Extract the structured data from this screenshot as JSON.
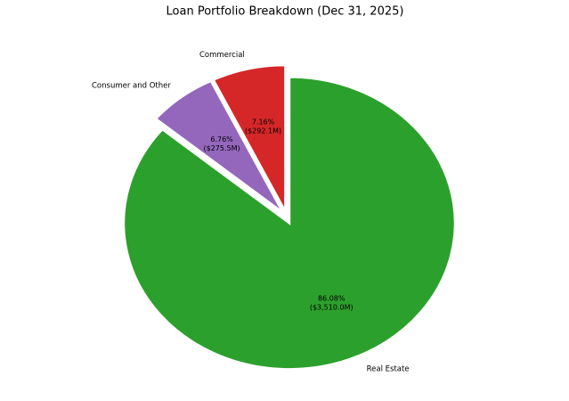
{
  "chart_data": {
    "type": "pie",
    "title": "Loan Portfolio Breakdown (Dec 31, 2025)",
    "categories": [
      "Real Estate",
      "Consumer and Other",
      "Commercial"
    ],
    "values": [
      86.08,
      6.76,
      7.16
    ],
    "value_labels": [
      "86.08%\n($3,510.0M)",
      "6.76%\n($275.5M)",
      "7.16%\n($292.1M)"
    ],
    "colors": [
      "#2ca02c",
      "#9467bd",
      "#d62728"
    ]
  }
}
